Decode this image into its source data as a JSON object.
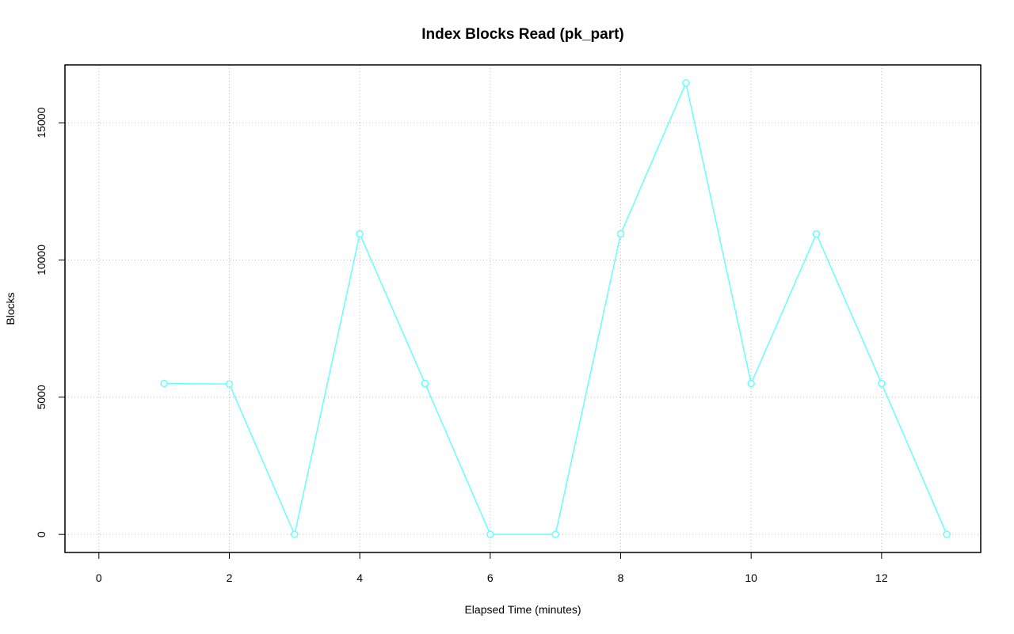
{
  "chart_data": {
    "type": "line",
    "title": "Index Blocks Read (pk_part)",
    "x_label": "Elapsed Time (minutes)",
    "y_label": "Blocks",
    "x": [
      1,
      2,
      3,
      4,
      5,
      6,
      7,
      8,
      9,
      10,
      11,
      12,
      13
    ],
    "series": [
      {
        "name": "Blocks",
        "color": "#66ffff",
        "values": [
          5500,
          5480,
          0,
          10950,
          5500,
          0,
          0,
          10950,
          16450,
          5500,
          10950,
          5500,
          0
        ]
      }
    ],
    "xlim": [
      -0.52,
      13.52
    ],
    "xticks": [
      0,
      2,
      4,
      6,
      8,
      10,
      12
    ],
    "ylim": [
      -658,
      17108
    ],
    "yticks": [
      0,
      5000,
      10000,
      15000
    ],
    "grid": true
  }
}
